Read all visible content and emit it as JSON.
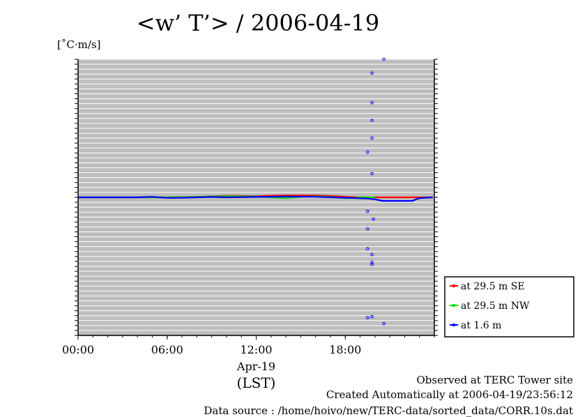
{
  "title": "<w’ T’> / 2006-04-19",
  "unit": "[˚C·m/s]",
  "footer": {
    "line1": "Observed at TERC Tower site",
    "line2": "Created Automatically at 2006-04-19/23:56:12",
    "line3": "Data source : /home/hoivo/new/TERC-data/sorted_data/CORR.10s.dat"
  },
  "chart_data": {
    "type": "line",
    "title": "<w’ T’> / 2006-04-19",
    "ylabel": "[˚C·m/s]",
    "xlabel": "Apr-19",
    "xlabel2": "(LST)",
    "x_ticks": [
      "00:00",
      "06:00",
      "12:00",
      "18:00"
    ],
    "x_range_hours": [
      0,
      24
    ],
    "ylim": [
      -0.7,
      0.7
    ],
    "grid": true,
    "legend_position": "right",
    "series": [
      {
        "name": "at 29.5 m SE",
        "color": "#ff0000",
        "x": [
          0,
          2,
          4,
          6,
          8,
          9,
          10,
          11,
          12,
          13,
          14,
          15,
          16,
          17,
          18,
          19,
          20,
          21,
          22,
          23,
          23.9
        ],
        "y": [
          0.0,
          0.0,
          0.0,
          0.0,
          0.003,
          0.005,
          0.008,
          0.007,
          0.006,
          0.008,
          0.01,
          0.01,
          0.01,
          0.007,
          0.003,
          0.0,
          0.0,
          0.0,
          0.0,
          0.0,
          0.0
        ]
      },
      {
        "name": "at 29.5 m NW",
        "color": "#00dd00",
        "x": [
          0,
          2,
          4,
          6,
          8,
          9,
          10,
          11,
          12,
          13,
          14,
          15,
          16,
          17,
          18,
          19,
          20
        ],
        "y": [
          0.0,
          0.0,
          0.0,
          0.0,
          0.002,
          0.004,
          0.006,
          0.005,
          0.004,
          0.0,
          -0.004,
          0.003,
          0.005,
          0.002,
          -0.005,
          0.0,
          0.0
        ]
      },
      {
        "name": "at 1.6 m",
        "color": "#0000ff",
        "x": [
          0,
          2,
          4,
          5,
          6,
          7,
          8,
          9,
          10,
          12,
          14,
          16,
          18,
          19.5,
          20,
          20.5,
          21,
          21.5,
          22,
          22.5,
          23,
          23.9
        ],
        "y": [
          0.0,
          0.0,
          0.0,
          0.003,
          -0.003,
          -0.002,
          0.0,
          0.002,
          0.0,
          0.002,
          0.004,
          0.003,
          -0.002,
          -0.006,
          -0.01,
          -0.018,
          -0.018,
          -0.018,
          -0.018,
          -0.018,
          -0.004,
          0.0
        ]
      }
    ],
    "outlier_points": [
      {
        "series": "at 1.6 m",
        "x": 20.6,
        "y": 0.7
      },
      {
        "series": "at 1.6 m",
        "x": 19.8,
        "y": 0.63
      },
      {
        "series": "at 1.6 m",
        "x": 19.8,
        "y": 0.48
      },
      {
        "series": "at 1.6 m",
        "x": 19.8,
        "y": 0.39
      },
      {
        "series": "at 1.6 m",
        "x": 19.8,
        "y": 0.3
      },
      {
        "series": "at 1.6 m",
        "x": 19.5,
        "y": 0.23
      },
      {
        "series": "at 1.6 m",
        "x": 19.8,
        "y": 0.12
      },
      {
        "series": "at 1.6 m",
        "x": 19.5,
        "y": -0.07
      },
      {
        "series": "at 1.6 m",
        "x": 19.9,
        "y": -0.11
      },
      {
        "series": "at 1.6 m",
        "x": 19.5,
        "y": -0.16
      },
      {
        "series": "at 1.6 m",
        "x": 19.5,
        "y": -0.26
      },
      {
        "series": "at 1.6 m",
        "x": 19.8,
        "y": -0.29
      },
      {
        "series": "at 1.6 m",
        "x": 19.8,
        "y": -0.33
      },
      {
        "series": "at 1.6 m",
        "x": 19.8,
        "y": -0.34
      },
      {
        "series": "at 1.6 m",
        "x": 19.5,
        "y": -0.61
      },
      {
        "series": "at 1.6 m",
        "x": 19.8,
        "y": -0.605
      },
      {
        "series": "at 1.6 m",
        "x": 20.6,
        "y": -0.64
      }
    ]
  }
}
